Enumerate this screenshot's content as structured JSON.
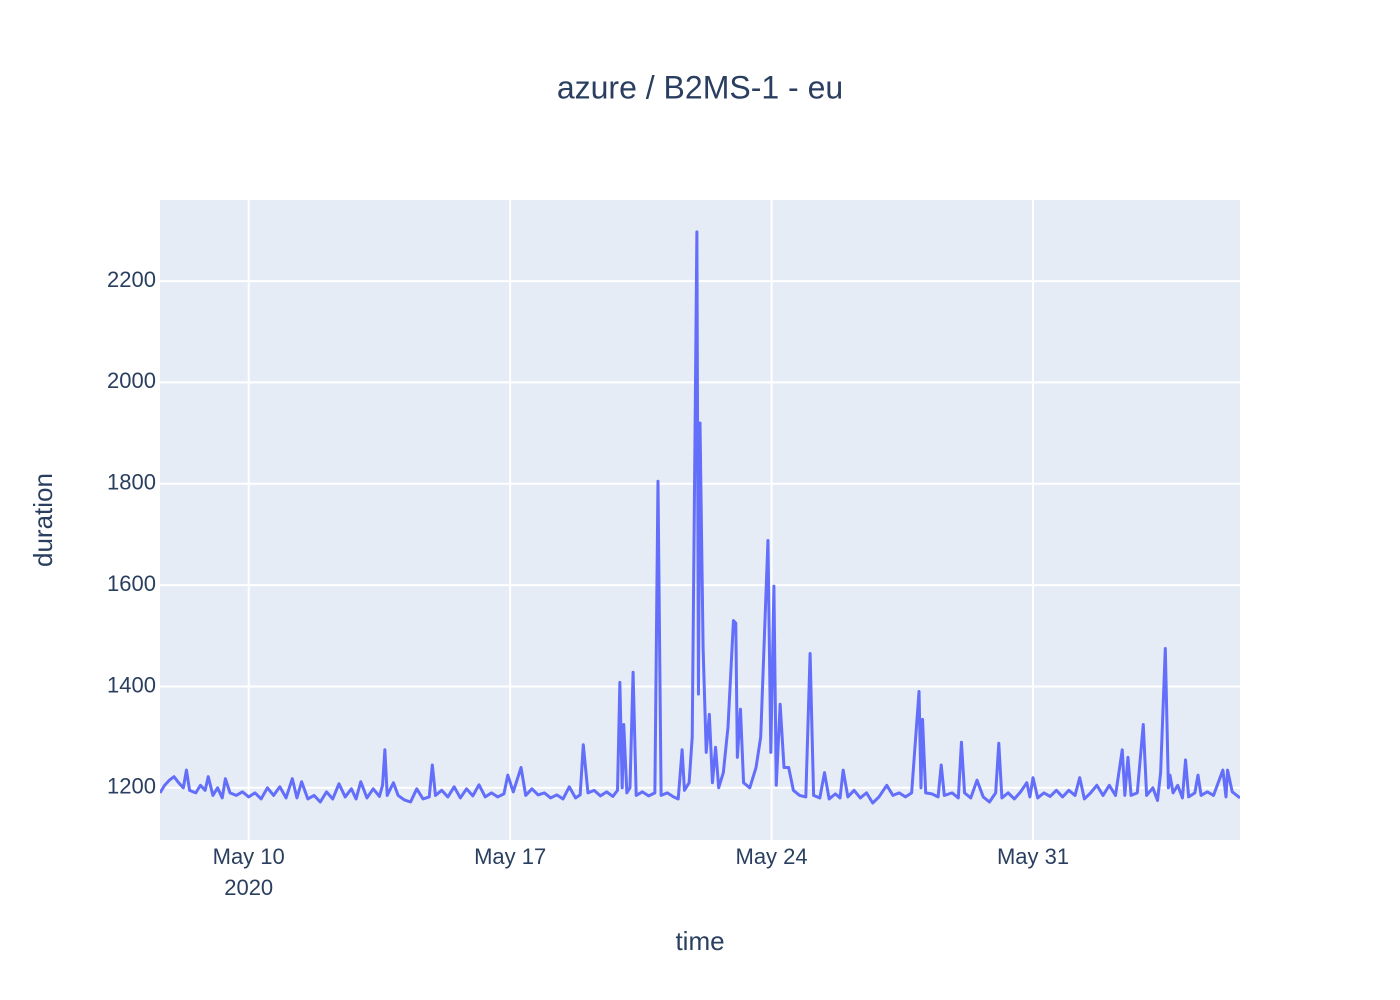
{
  "chart_data": {
    "type": "line",
    "title": "azure / B2MS-1 - eu",
    "x_label": "time",
    "y_label": "duration",
    "color": "#636efa",
    "grid": true,
    "xlim": [
      "2020-05-07 15:00",
      "2020-06-05 13:00"
    ],
    "xticks": [
      {
        "value": "2020-05-10",
        "label": [
          "May 10",
          "2020"
        ]
      },
      {
        "value": "2020-05-17",
        "label": [
          "May 17"
        ]
      },
      {
        "value": "2020-05-24",
        "label": [
          "May 24"
        ]
      },
      {
        "value": "2020-05-31",
        "label": [
          "May 31"
        ]
      }
    ],
    "ylim": [
      1097,
      2360
    ],
    "yticks": [
      1200,
      1400,
      1600,
      1800,
      2000,
      2200
    ],
    "x": [
      "2020-05-07 15:00",
      "2020-05-07 18:00",
      "2020-05-07 21:00",
      "2020-05-08 00:00",
      "2020-05-08 03:00",
      "2020-05-08 06:00",
      "2020-05-08 08:00",
      "2020-05-08 10:00",
      "2020-05-08 14:00",
      "2020-05-08 17:00",
      "2020-05-08 20:00",
      "2020-05-08 22:00",
      "2020-05-09 01:00",
      "2020-05-09 04:00",
      "2020-05-09 07:00",
      "2020-05-09 09:00",
      "2020-05-09 12:00",
      "2020-05-09 16:00",
      "2020-05-09 20:00",
      "2020-05-10 00:00",
      "2020-05-10 04:00",
      "2020-05-10 08:00",
      "2020-05-10 12:00",
      "2020-05-10 16:00",
      "2020-05-10 20:00",
      "2020-05-11 00:00",
      "2020-05-11 04:00",
      "2020-05-11 07:00",
      "2020-05-11 10:00",
      "2020-05-11 14:00",
      "2020-05-11 18:00",
      "2020-05-11 22:00",
      "2020-05-12 02:00",
      "2020-05-12 06:00",
      "2020-05-12 10:00",
      "2020-05-12 14:00",
      "2020-05-12 18:00",
      "2020-05-12 21:00",
      "2020-05-13 00:00",
      "2020-05-13 04:00",
      "2020-05-13 08:00",
      "2020-05-13 12:00",
      "2020-05-13 14:00",
      "2020-05-13 15:30",
      "2020-05-13 17:00",
      "2020-05-13 21:00",
      "2020-05-14 00:00",
      "2020-05-14 04:00",
      "2020-05-14 08:00",
      "2020-05-14 12:00",
      "2020-05-14 16:00",
      "2020-05-14 20:00",
      "2020-05-14 22:00",
      "2020-05-15 00:00",
      "2020-05-15 04:00",
      "2020-05-15 08:00",
      "2020-05-15 12:00",
      "2020-05-15 16:00",
      "2020-05-15 20:00",
      "2020-05-16 00:00",
      "2020-05-16 04:00",
      "2020-05-16 08:00",
      "2020-05-16 12:00",
      "2020-05-16 16:00",
      "2020-05-16 20:00",
      "2020-05-16 22:30",
      "2020-05-17 02:00",
      "2020-05-17 07:00",
      "2020-05-17 10:00",
      "2020-05-17 14:00",
      "2020-05-17 18:00",
      "2020-05-17 22:00",
      "2020-05-18 02:00",
      "2020-05-18 06:00",
      "2020-05-18 10:00",
      "2020-05-18 14:00",
      "2020-05-18 18:00",
      "2020-05-18 21:00",
      "2020-05-18 23:00",
      "2020-05-19 02:00",
      "2020-05-19 06:00",
      "2020-05-19 10:00",
      "2020-05-19 14:00",
      "2020-05-19 18:00",
      "2020-05-19 21:00",
      "2020-05-19 22:30",
      "2020-05-20 00:00",
      "2020-05-20 01:00",
      "2020-05-20 03:00",
      "2020-05-20 05:00",
      "2020-05-20 07:00",
      "2020-05-20 09:00",
      "2020-05-20 13:00",
      "2020-05-20 17:00",
      "2020-05-20 21:00",
      "2020-05-20 23:00",
      "2020-05-21 01:00",
      "2020-05-21 05:00",
      "2020-05-21 09:00",
      "2020-05-21 12:00",
      "2020-05-21 14:30",
      "2020-05-21 16:00",
      "2020-05-21 19:00",
      "2020-05-21 21:00",
      "2020-05-22 00:00",
      "2020-05-22 01:00",
      "2020-05-22 02:00",
      "2020-05-22 04:00",
      "2020-05-22 06:00",
      "2020-05-22 08:00",
      "2020-05-22 10:00",
      "2020-05-22 12:00",
      "2020-05-22 14:00",
      "2020-05-22 17:00",
      "2020-05-22 20:00",
      "2020-05-22 23:30",
      "2020-05-23 01:00",
      "2020-05-23 02:00",
      "2020-05-23 04:00",
      "2020-05-23 06:00",
      "2020-05-23 10:00",
      "2020-05-23 14:00",
      "2020-05-23 17:00",
      "2020-05-23 21:40",
      "2020-05-23 23:30",
      "2020-05-24 01:30",
      "2020-05-24 03:00",
      "2020-05-24 05:30",
      "2020-05-24 08:00",
      "2020-05-24 11:00",
      "2020-05-24 14:00",
      "2020-05-24 18:00",
      "2020-05-24 22:00",
      "2020-05-25 00:45",
      "2020-05-25 03:00",
      "2020-05-25 07:00",
      "2020-05-25 10:00",
      "2020-05-25 13:00",
      "2020-05-25 17:00",
      "2020-05-25 20:00",
      "2020-05-25 22:00",
      "2020-05-26 01:00",
      "2020-05-26 05:00",
      "2020-05-26 09:00",
      "2020-05-26 13:00",
      "2020-05-26 17:00",
      "2020-05-26 21:00",
      "2020-05-27 02:00",
      "2020-05-27 06:00",
      "2020-05-27 10:00",
      "2020-05-27 14:00",
      "2020-05-27 18:00",
      "2020-05-27 22:45",
      "2020-05-28 00:00",
      "2020-05-28 01:00",
      "2020-05-28 03:00",
      "2020-05-28 07:00",
      "2020-05-28 11:00",
      "2020-05-28 13:00",
      "2020-05-28 15:00",
      "2020-05-28 20:00",
      "2020-05-29 00:00",
      "2020-05-29 02:00",
      "2020-05-29 04:00",
      "2020-05-29 08:00",
      "2020-05-29 12:00",
      "2020-05-29 16:00",
      "2020-05-29 20:00",
      "2020-05-30 00:00",
      "2020-05-30 02:00",
      "2020-05-30 04:00",
      "2020-05-30 08:00",
      "2020-05-30 12:00",
      "2020-05-30 16:00",
      "2020-05-30 20:00",
      "2020-05-30 22:00",
      "2020-05-31 00:00",
      "2020-05-31 03:00",
      "2020-05-31 07:00",
      "2020-05-31 11:00",
      "2020-05-31 15:00",
      "2020-05-31 19:00",
      "2020-05-31 23:00",
      "2020-06-01 03:00",
      "2020-06-01 06:00",
      "2020-06-01 09:00",
      "2020-06-01 13:00",
      "2020-06-01 17:00",
      "2020-06-01 21:00",
      "2020-06-02 01:00",
      "2020-06-02 05:00",
      "2020-06-02 09:20",
      "2020-06-02 11:00",
      "2020-06-02 13:00",
      "2020-06-02 15:00",
      "2020-06-02 19:00",
      "2020-06-02 22:50",
      "2020-06-03 01:00",
      "2020-06-03 05:00",
      "2020-06-03 08:00",
      "2020-06-03 10:00",
      "2020-06-03 13:00",
      "2020-06-03 15:00",
      "2020-06-03 16:00",
      "2020-06-03 18:00",
      "2020-06-03 21:00",
      "2020-06-04 00:00",
      "2020-06-04 02:00",
      "2020-06-04 04:00",
      "2020-06-04 08:00",
      "2020-06-04 10:00",
      "2020-06-04 12:00",
      "2020-06-04 16:00",
      "2020-06-04 20:00",
      "2020-06-05 02:00",
      "2020-06-05 04:00",
      "2020-06-05 05:00",
      "2020-06-05 08:00",
      "2020-06-05 13:00"
    ],
    "values": [
      1190,
      1205,
      1215,
      1222,
      1210,
      1200,
      1235,
      1195,
      1190,
      1205,
      1195,
      1222,
      1185,
      1200,
      1180,
      1218,
      1190,
      1185,
      1192,
      1182,
      1190,
      1178,
      1200,
      1185,
      1202,
      1180,
      1218,
      1180,
      1212,
      1178,
      1185,
      1172,
      1192,
      1178,
      1208,
      1182,
      1198,
      1178,
      1212,
      1180,
      1198,
      1183,
      1205,
      1275,
      1185,
      1210,
      1185,
      1176,
      1172,
      1198,
      1178,
      1182,
      1245,
      1185,
      1195,
      1182,
      1202,
      1180,
      1198,
      1184,
      1206,
      1182,
      1190,
      1182,
      1188,
      1225,
      1192,
      1240,
      1185,
      1198,
      1186,
      1190,
      1180,
      1186,
      1178,
      1202,
      1180,
      1186,
      1285,
      1190,
      1195,
      1184,
      1192,
      1183,
      1195,
      1408,
      1200,
      1325,
      1190,
      1200,
      1428,
      1185,
      1192,
      1184,
      1190,
      1805,
      1185,
      1190,
      1182,
      1178,
      1275,
      1195,
      1210,
      1300,
      2297,
      1385,
      1920,
      1475,
      1270,
      1345,
      1210,
      1280,
      1200,
      1230,
      1320,
      1530,
      1525,
      1260,
      1355,
      1210,
      1200,
      1240,
      1300,
      1688,
      1270,
      1598,
      1205,
      1365,
      1240,
      1240,
      1195,
      1185,
      1182,
      1465,
      1185,
      1180,
      1230,
      1178,
      1188,
      1180,
      1235,
      1182,
      1195,
      1180,
      1190,
      1170,
      1182,
      1205,
      1185,
      1190,
      1182,
      1190,
      1390,
      1200,
      1335,
      1190,
      1188,
      1182,
      1245,
      1185,
      1190,
      1180,
      1290,
      1190,
      1180,
      1215,
      1182,
      1172,
      1190,
      1288,
      1180,
      1190,
      1178,
      1192,
      1210,
      1182,
      1220,
      1180,
      1190,
      1183,
      1195,
      1182,
      1195,
      1185,
      1220,
      1178,
      1190,
      1205,
      1185,
      1205,
      1185,
      1275,
      1185,
      1260,
      1185,
      1190,
      1325,
      1185,
      1200,
      1175,
      1230,
      1475,
      1200,
      1225,
      1190,
      1205,
      1180,
      1255,
      1182,
      1190,
      1225,
      1185,
      1192,
      1185,
      1235,
      1182,
      1235,
      1192,
      1180
    ]
  }
}
